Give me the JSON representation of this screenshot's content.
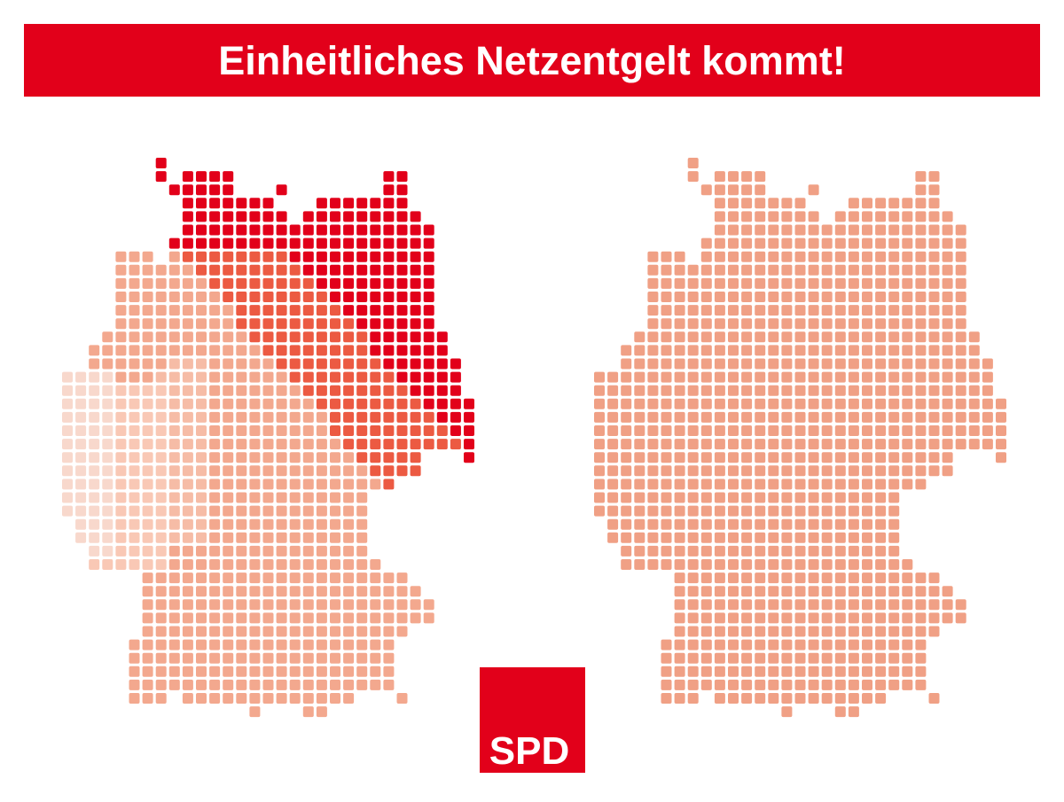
{
  "header": {
    "title": "Einheitliches Netzentgelt kommt!"
  },
  "logo": {
    "text": "SPD"
  }
}
